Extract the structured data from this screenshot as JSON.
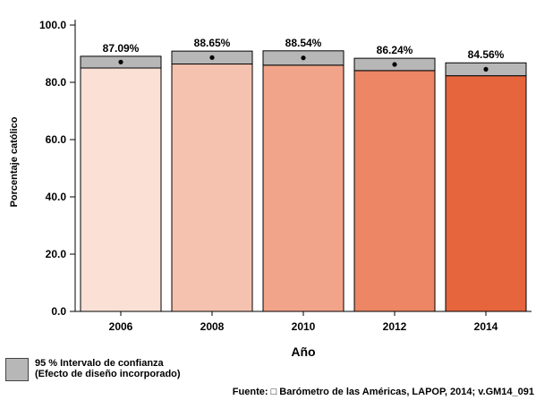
{
  "chart_data": {
    "type": "bar",
    "categories": [
      "2006",
      "2008",
      "2010",
      "2012",
      "2014"
    ],
    "values": [
      87.09,
      88.65,
      88.54,
      86.24,
      84.56
    ],
    "data_labels": [
      "87.09%",
      "88.65%",
      "88.54%",
      "86.24%",
      "84.56%"
    ],
    "ci_low": [
      85.0,
      86.4,
      86.0,
      84.1,
      82.3
    ],
    "ci_high": [
      89.1,
      90.9,
      91.0,
      88.4,
      86.8
    ],
    "bar_colors": [
      "#fbe0d6",
      "#f6c2b0",
      "#f2a48a",
      "#ec8664",
      "#e6653d"
    ],
    "ci_color": "#b7b7b7",
    "ylabel": "Porcentaje católico",
    "xlabel": "Año",
    "ylim": [
      0,
      100
    ],
    "yticks": [
      0,
      20,
      40,
      60,
      80,
      100
    ],
    "ytick_labels": [
      "0.0",
      "20.0",
      "40.0",
      "60.0",
      "80.0",
      "100.0"
    ],
    "grid": false
  },
  "legend": {
    "line1": "95 % Intervalo de confianza",
    "line2": "(Efecto de diseño incorporado)"
  },
  "source": "Fuente: □ Barómetro de las Américas, LAPOP, 2014; v.GM14_091"
}
